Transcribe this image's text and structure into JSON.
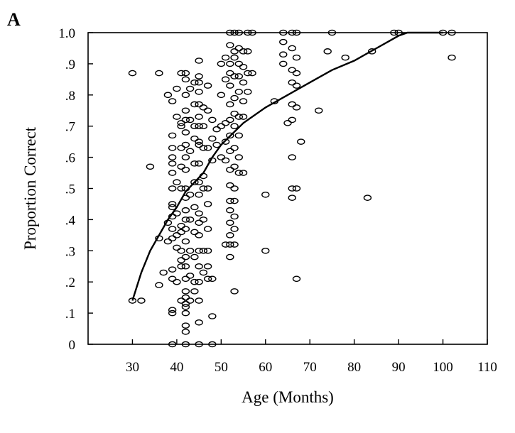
{
  "panel_label": "A",
  "chart_data": {
    "type": "scatter",
    "xlabel": "Age (Months)",
    "ylabel": "Proportion Correct",
    "xlim": [
      20,
      110
    ],
    "ylim": [
      0,
      1.0
    ],
    "x_ticks": [
      {
        "value": 30,
        "label": "30"
      },
      {
        "value": 40,
        "label": "40"
      },
      {
        "value": 50,
        "label": "50"
      },
      {
        "value": 60,
        "label": "60"
      },
      {
        "value": 70,
        "label": "70"
      },
      {
        "value": 80,
        "label": "80"
      },
      {
        "value": 90,
        "label": "90"
      },
      {
        "value": 100,
        "label": "100"
      },
      {
        "value": 110,
        "label": "110"
      }
    ],
    "y_ticks": [
      {
        "value": 0,
        "label": "0"
      },
      {
        "value": 0.1,
        "label": ".1"
      },
      {
        "value": 0.2,
        "label": ".2"
      },
      {
        "value": 0.3,
        "label": ".3"
      },
      {
        "value": 0.4,
        "label": ".4"
      },
      {
        "value": 0.5,
        "label": ".5"
      },
      {
        "value": 0.6,
        "label": ".6"
      },
      {
        "value": 0.7,
        "label": ".7"
      },
      {
        "value": 0.8,
        "label": ".8"
      },
      {
        "value": 0.9,
        "label": ".9"
      },
      {
        "value": 1.0,
        "label": "1.0"
      }
    ],
    "grid": false,
    "legend": "none",
    "marker": "open-ellipse",
    "points": [
      [
        30,
        0.87
      ],
      [
        30,
        0.14
      ],
      [
        32,
        0.14
      ],
      [
        34,
        0.57
      ],
      [
        36,
        0.87
      ],
      [
        36,
        0.34
      ],
      [
        36,
        0.19
      ],
      [
        37,
        0.23
      ],
      [
        38,
        0.8
      ],
      [
        38,
        0.39
      ],
      [
        38,
        0.33
      ],
      [
        39,
        0.78
      ],
      [
        39,
        0.67
      ],
      [
        39,
        0.63
      ],
      [
        39,
        0.6
      ],
      [
        39,
        0.58
      ],
      [
        39,
        0.55
      ],
      [
        39,
        0.5
      ],
      [
        39,
        0.45
      ],
      [
        39,
        0.44
      ],
      [
        39,
        0.41
      ],
      [
        39,
        0.37
      ],
      [
        39,
        0.34
      ],
      [
        39,
        0.24
      ],
      [
        39,
        0.21
      ],
      [
        39,
        0.11
      ],
      [
        39,
        0.1
      ],
      [
        39,
        0.0
      ],
      [
        40,
        0.82
      ],
      [
        40,
        0.73
      ],
      [
        40,
        0.52
      ],
      [
        40,
        0.42
      ],
      [
        40,
        0.35
      ],
      [
        40,
        0.31
      ],
      [
        40,
        0.2
      ],
      [
        41,
        0.87
      ],
      [
        41,
        0.71
      ],
      [
        41,
        0.7
      ],
      [
        41,
        0.63
      ],
      [
        41,
        0.57
      ],
      [
        41,
        0.5
      ],
      [
        41,
        0.38
      ],
      [
        41,
        0.36
      ],
      [
        41,
        0.3
      ],
      [
        41,
        0.27
      ],
      [
        41,
        0.25
      ],
      [
        41,
        0.14
      ],
      [
        42,
        0.87
      ],
      [
        42,
        0.85
      ],
      [
        42,
        0.8
      ],
      [
        42,
        0.75
      ],
      [
        42,
        0.72
      ],
      [
        42,
        0.68
      ],
      [
        42,
        0.64
      ],
      [
        42,
        0.6
      ],
      [
        42,
        0.56
      ],
      [
        42,
        0.5
      ],
      [
        42,
        0.47
      ],
      [
        42,
        0.43
      ],
      [
        42,
        0.4
      ],
      [
        42,
        0.37
      ],
      [
        42,
        0.33
      ],
      [
        42,
        0.28
      ],
      [
        42,
        0.25
      ],
      [
        42,
        0.21
      ],
      [
        42,
        0.17
      ],
      [
        42,
        0.15
      ],
      [
        42,
        0.13
      ],
      [
        42,
        0.12
      ],
      [
        42,
        0.1
      ],
      [
        42,
        0.06
      ],
      [
        42,
        0.04
      ],
      [
        42,
        0.0
      ],
      [
        43,
        0.82
      ],
      [
        43,
        0.72
      ],
      [
        43,
        0.62
      ],
      [
        43,
        0.48
      ],
      [
        43,
        0.4
      ],
      [
        43,
        0.3
      ],
      [
        43,
        0.22
      ],
      [
        43,
        0.14
      ],
      [
        44,
        0.84
      ],
      [
        44,
        0.77
      ],
      [
        44,
        0.7
      ],
      [
        44,
        0.66
      ],
      [
        44,
        0.58
      ],
      [
        44,
        0.52
      ],
      [
        44,
        0.44
      ],
      [
        44,
        0.36
      ],
      [
        44,
        0.28
      ],
      [
        44,
        0.2
      ],
      [
        44,
        0.17
      ],
      [
        45,
        0.91
      ],
      [
        45,
        0.86
      ],
      [
        45,
        0.84
      ],
      [
        45,
        0.81
      ],
      [
        45,
        0.77
      ],
      [
        45,
        0.73
      ],
      [
        45,
        0.7
      ],
      [
        45,
        0.65
      ],
      [
        45,
        0.64
      ],
      [
        45,
        0.58
      ],
      [
        45,
        0.52
      ],
      [
        45,
        0.48
      ],
      [
        45,
        0.42
      ],
      [
        45,
        0.39
      ],
      [
        45,
        0.35
      ],
      [
        45,
        0.3
      ],
      [
        45,
        0.25
      ],
      [
        45,
        0.2
      ],
      [
        45,
        0.14
      ],
      [
        45,
        0.07
      ],
      [
        45,
        0.0
      ],
      [
        46,
        0.76
      ],
      [
        46,
        0.7
      ],
      [
        46,
        0.63
      ],
      [
        46,
        0.54
      ],
      [
        46,
        0.5
      ],
      [
        46,
        0.4
      ],
      [
        46,
        0.3
      ],
      [
        46,
        0.23
      ],
      [
        47,
        0.83
      ],
      [
        47,
        0.75
      ],
      [
        47,
        0.63
      ],
      [
        47,
        0.5
      ],
      [
        47,
        0.45
      ],
      [
        47,
        0.37
      ],
      [
        47,
        0.3
      ],
      [
        47,
        0.25
      ],
      [
        47,
        0.21
      ],
      [
        48,
        0.72
      ],
      [
        48,
        0.66
      ],
      [
        48,
        0.59
      ],
      [
        48,
        0.21
      ],
      [
        48,
        0.09
      ],
      [
        48,
        0.0
      ],
      [
        49,
        0.69
      ],
      [
        49,
        0.64
      ],
      [
        50,
        0.9
      ],
      [
        50,
        0.8
      ],
      [
        50,
        0.7
      ],
      [
        50,
        0.6
      ],
      [
        51,
        0.92
      ],
      [
        51,
        0.85
      ],
      [
        51,
        0.71
      ],
      [
        51,
        0.65
      ],
      [
        51,
        0.59
      ],
      [
        51,
        0.32
      ],
      [
        52,
        1.0
      ],
      [
        52,
        0.96
      ],
      [
        52,
        0.9
      ],
      [
        52,
        0.87
      ],
      [
        52,
        0.83
      ],
      [
        52,
        0.77
      ],
      [
        52,
        0.72
      ],
      [
        52,
        0.67
      ],
      [
        52,
        0.62
      ],
      [
        52,
        0.56
      ],
      [
        52,
        0.51
      ],
      [
        52,
        0.46
      ],
      [
        52,
        0.43
      ],
      [
        52,
        0.39
      ],
      [
        52,
        0.35
      ],
      [
        52,
        0.32
      ],
      [
        52,
        0.28
      ],
      [
        53,
        1.0
      ],
      [
        53,
        0.94
      ],
      [
        53,
        0.92
      ],
      [
        53,
        0.86
      ],
      [
        53,
        0.79
      ],
      [
        53,
        0.74
      ],
      [
        53,
        0.7
      ],
      [
        53,
        0.63
      ],
      [
        53,
        0.57
      ],
      [
        53,
        0.5
      ],
      [
        53,
        0.46
      ],
      [
        53,
        0.41
      ],
      [
        53,
        0.37
      ],
      [
        53,
        0.32
      ],
      [
        53,
        0.17
      ],
      [
        54,
        1.0
      ],
      [
        54,
        0.95
      ],
      [
        54,
        0.9
      ],
      [
        54,
        0.86
      ],
      [
        54,
        0.81
      ],
      [
        54,
        0.73
      ],
      [
        54,
        0.67
      ],
      [
        54,
        0.6
      ],
      [
        54,
        0.55
      ],
      [
        55,
        0.94
      ],
      [
        55,
        0.89
      ],
      [
        55,
        0.84
      ],
      [
        55,
        0.78
      ],
      [
        55,
        0.73
      ],
      [
        55,
        0.55
      ],
      [
        56,
        1.0
      ],
      [
        56,
        0.94
      ],
      [
        56,
        0.87
      ],
      [
        56,
        0.81
      ],
      [
        57,
        1.0
      ],
      [
        57,
        0.87
      ],
      [
        60,
        0.48
      ],
      [
        60,
        0.3
      ],
      [
        62,
        0.78
      ],
      [
        64,
        1.0
      ],
      [
        64,
        0.97
      ],
      [
        64,
        0.93
      ],
      [
        64,
        0.9
      ],
      [
        65,
        0.71
      ],
      [
        66,
        1.0
      ],
      [
        66,
        0.95
      ],
      [
        66,
        0.88
      ],
      [
        66,
        0.84
      ],
      [
        66,
        0.77
      ],
      [
        66,
        0.72
      ],
      [
        66,
        0.6
      ],
      [
        66,
        0.5
      ],
      [
        66,
        0.47
      ],
      [
        67,
        1.0
      ],
      [
        67,
        0.92
      ],
      [
        67,
        0.87
      ],
      [
        67,
        0.83
      ],
      [
        67,
        0.76
      ],
      [
        67,
        0.5
      ],
      [
        67,
        0.21
      ],
      [
        68,
        0.65
      ],
      [
        72,
        0.75
      ],
      [
        74,
        0.94
      ],
      [
        75,
        1.0
      ],
      [
        78,
        0.92
      ],
      [
        83,
        0.47
      ],
      [
        84,
        0.94
      ],
      [
        89,
        1.0
      ],
      [
        90,
        1.0
      ],
      [
        100,
        1.0
      ],
      [
        102,
        1.0
      ],
      [
        102,
        0.92
      ]
    ],
    "fit_curve": [
      [
        30,
        0.14
      ],
      [
        32,
        0.23
      ],
      [
        34,
        0.3
      ],
      [
        36,
        0.35
      ],
      [
        38,
        0.4
      ],
      [
        40,
        0.44
      ],
      [
        42,
        0.49
      ],
      [
        44,
        0.52
      ],
      [
        46,
        0.55
      ],
      [
        48,
        0.6
      ],
      [
        50,
        0.64
      ],
      [
        55,
        0.71
      ],
      [
        60,
        0.76
      ],
      [
        65,
        0.8
      ],
      [
        70,
        0.84
      ],
      [
        75,
        0.88
      ],
      [
        80,
        0.91
      ],
      [
        85,
        0.95
      ],
      [
        90,
        0.99
      ],
      [
        92,
        1.0
      ],
      [
        100,
        1.0
      ]
    ]
  }
}
